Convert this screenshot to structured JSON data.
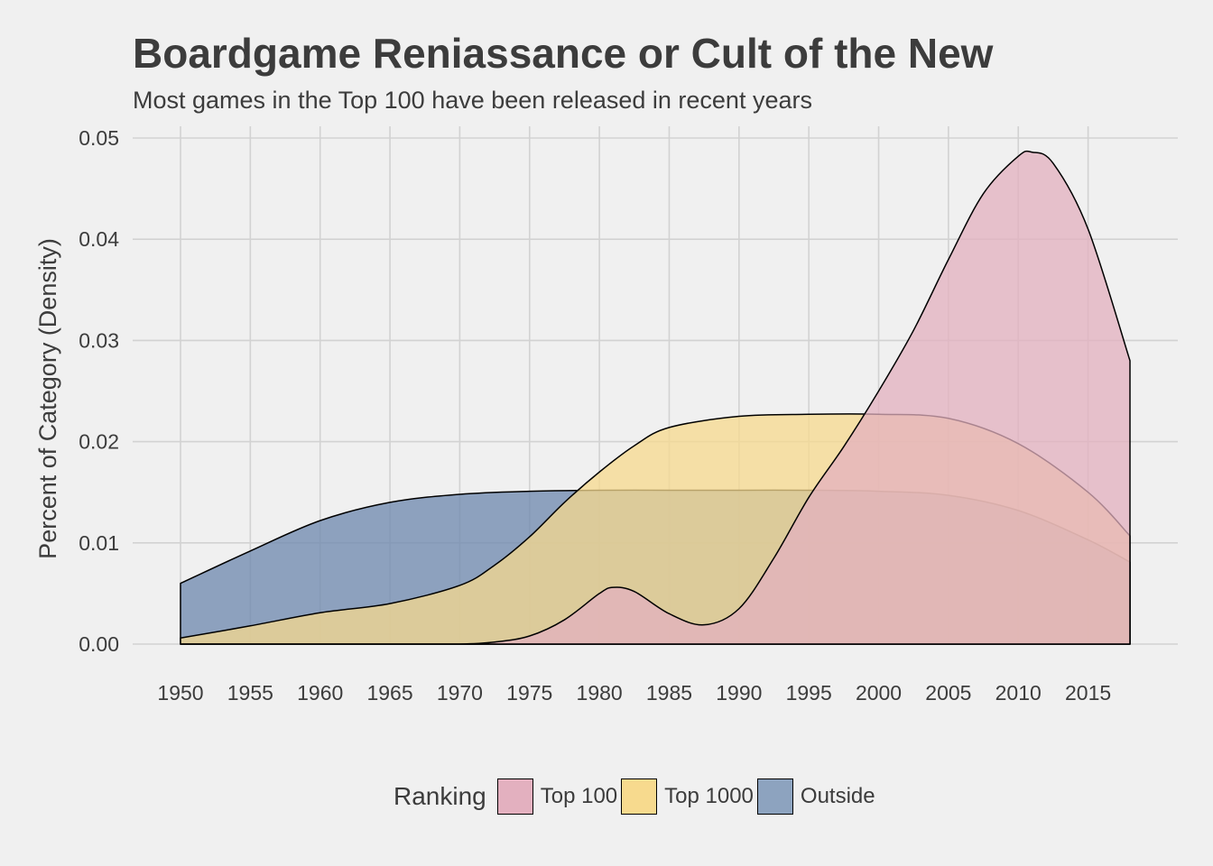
{
  "title": "Boardgame Reniassance or Cult of the New",
  "subtitle": "Most games in the Top 100 have been released in recent years",
  "chart_data": {
    "type": "area",
    "title": "Boardgame Reniassance or Cult of the New",
    "subtitle": "Most games in the Top 100 have been released in recent years",
    "xlabel": "",
    "ylabel": "Percent of Category (Density)",
    "xlim": [
      1950,
      2018
    ],
    "ylim": [
      0,
      0.05
    ],
    "x_ticks": [
      "1950",
      "1955",
      "1960",
      "1965",
      "1970",
      "1975",
      "1980",
      "1985",
      "1990",
      "1995",
      "2000",
      "2005",
      "2010",
      "2015"
    ],
    "y_ticks": [
      "0.00",
      "0.01",
      "0.02",
      "0.03",
      "0.04",
      "0.05"
    ],
    "grid": true,
    "legend": {
      "title": "Ranking",
      "position": "bottom"
    },
    "series": [
      {
        "name": "Outside",
        "color": "#6c87ad",
        "x": [
          1950,
          1955,
          1960,
          1965,
          1970,
          1975,
          1980,
          1985,
          1990,
          1995,
          2000,
          2005,
          2010,
          2015,
          2018
        ],
        "y": [
          0.006,
          0.0092,
          0.0122,
          0.014,
          0.0148,
          0.0151,
          0.0152,
          0.0152,
          0.0152,
          0.0152,
          0.0151,
          0.0147,
          0.0132,
          0.0103,
          0.0081
        ]
      },
      {
        "name": "Top 1000",
        "color": "#f7da8e",
        "x": [
          1950,
          1955,
          1960,
          1965,
          1970,
          1972.5,
          1975,
          1977.5,
          1980,
          1982.5,
          1985,
          1990,
          1995,
          2000,
          2005,
          2010,
          2015,
          2018
        ],
        "y": [
          0.0006,
          0.0018,
          0.0031,
          0.004,
          0.0058,
          0.0078,
          0.0106,
          0.014,
          0.017,
          0.0196,
          0.0214,
          0.0225,
          0.0227,
          0.0227,
          0.0223,
          0.0198,
          0.015,
          0.0107
        ]
      },
      {
        "name": "Top 100",
        "color": "#e3b0bf",
        "x": [
          1950,
          1965,
          1970,
          1972.5,
          1975,
          1977.5,
          1980,
          1981,
          1982.5,
          1985,
          1987.5,
          1990,
          1992.5,
          1995,
          1997.5,
          2000,
          2002.5,
          2005,
          2007.5,
          2010,
          2011,
          2012.5,
          2015,
          2018
        ],
        "y": [
          0.0,
          0.0,
          0.0,
          0.0002,
          0.0008,
          0.0024,
          0.005,
          0.0056,
          0.0052,
          0.003,
          0.0019,
          0.0035,
          0.0085,
          0.0145,
          0.0195,
          0.025,
          0.031,
          0.038,
          0.0445,
          0.0482,
          0.0486,
          0.0475,
          0.041,
          0.028
        ]
      }
    ]
  },
  "legend": {
    "title": "Ranking",
    "items": [
      {
        "label": "Top 100",
        "color": "#e3b0bf"
      },
      {
        "label": "Top 1000",
        "color": "#f7da8e"
      },
      {
        "label": "Outside",
        "color": "#8da3bf"
      }
    ]
  }
}
